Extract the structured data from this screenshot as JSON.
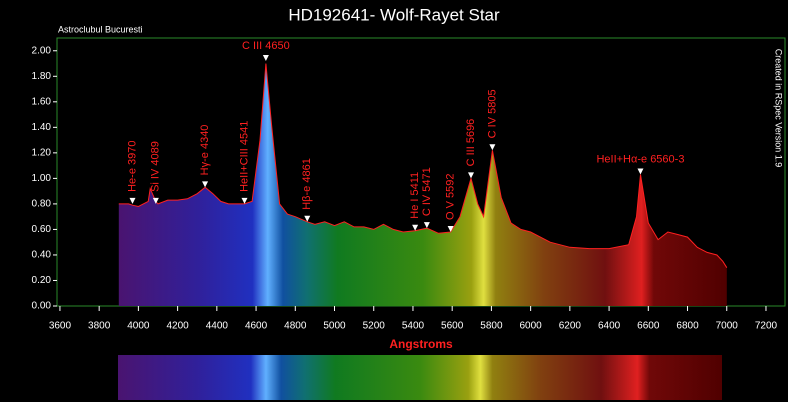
{
  "chart_data": {
    "type": "line",
    "title": "HD192641- Wolf-Rayet Star",
    "subtitle": "Astroclubul Bucuresti",
    "note": "Created in RSpec Version 1.9",
    "x_label": "Angstroms",
    "color": "#ff2020",
    "x": [
      3900,
      3950,
      3970,
      4000,
      4050,
      4060,
      4089,
      4100,
      4150,
      4200,
      4250,
      4300,
      4340,
      4380,
      4420,
      4460,
      4500,
      4541,
      4580,
      4620,
      4650,
      4680,
      4720,
      4760,
      4800,
      4861,
      4900,
      4950,
      5000,
      5050,
      5100,
      5150,
      5200,
      5250,
      5300,
      5350,
      5411,
      5471,
      5530,
      5592,
      5640,
      5696,
      5730,
      5760,
      5805,
      5850,
      5900,
      5950,
      6000,
      6100,
      6200,
      6300,
      6400,
      6500,
      6540,
      6560,
      6600,
      6650,
      6700,
      6750,
      6800,
      6850,
      6900,
      6950,
      6980,
      7000
    ],
    "values": [
      0.8,
      0.8,
      0.79,
      0.78,
      0.82,
      0.92,
      0.82,
      0.8,
      0.83,
      0.83,
      0.84,
      0.88,
      0.93,
      0.88,
      0.82,
      0.8,
      0.8,
      0.8,
      0.82,
      1.3,
      1.9,
      1.4,
      0.8,
      0.72,
      0.7,
      0.66,
      0.64,
      0.66,
      0.63,
      0.66,
      0.62,
      0.62,
      0.6,
      0.64,
      0.6,
      0.58,
      0.59,
      0.61,
      0.57,
      0.58,
      0.7,
      1.0,
      0.8,
      0.7,
      1.22,
      0.85,
      0.65,
      0.6,
      0.58,
      0.5,
      0.46,
      0.45,
      0.45,
      0.48,
      0.7,
      1.03,
      0.65,
      0.52,
      0.58,
      0.56,
      0.54,
      0.46,
      0.42,
      0.4,
      0.35,
      0.3
    ],
    "xlim": [
      3585,
      7297
    ],
    "ylim": [
      0,
      2.1
    ],
    "xticks": [
      3600,
      3800,
      4000,
      4200,
      4400,
      4600,
      4800,
      5000,
      5200,
      5400,
      5600,
      5800,
      6000,
      6200,
      6400,
      6600,
      6800,
      7000,
      7200
    ],
    "yticks": [
      {
        "value": 0,
        "label": "0.00"
      },
      {
        "value": 0.2,
        "label": "0.20"
      },
      {
        "value": 0.4,
        "label": "0.40"
      },
      {
        "value": 0.6,
        "label": "0.60"
      },
      {
        "value": 0.8,
        "label": "0.80"
      },
      {
        "value": 1.0,
        "label": "1.00"
      },
      {
        "value": 1.2,
        "label": "1.20"
      },
      {
        "value": 1.4,
        "label": "1.40"
      },
      {
        "value": 1.6,
        "label": "1.60"
      },
      {
        "value": 1.8,
        "label": "1.80"
      },
      {
        "value": 2.0,
        "label": "2.00"
      }
    ],
    "annotations": [
      {
        "text": "He-e 3970",
        "x": 3970,
        "y": 0.8,
        "orientation": "vertical"
      },
      {
        "text": "Si IV 4089",
        "x": 4089,
        "y": 0.8,
        "orientation": "vertical"
      },
      {
        "text": "Hγ-e 4340",
        "x": 4340,
        "y": 0.93,
        "orientation": "vertical"
      },
      {
        "text": "HeII+CIII 4541",
        "x": 4541,
        "y": 0.8,
        "orientation": "vertical"
      },
      {
        "text": "C III 4650",
        "x": 4650,
        "y": 1.92,
        "orientation": "horizontal"
      },
      {
        "text": "Hβ-e 4861",
        "x": 4861,
        "y": 0.66,
        "orientation": "vertical"
      },
      {
        "text": "He I 5411",
        "x": 5411,
        "y": 0.59,
        "orientation": "vertical"
      },
      {
        "text": "C IV 5471",
        "x": 5471,
        "y": 0.61,
        "orientation": "vertical"
      },
      {
        "text": "O V 5592",
        "x": 5592,
        "y": 0.58,
        "orientation": "vertical"
      },
      {
        "text": "C III 5696",
        "x": 5696,
        "y": 1.0,
        "orientation": "vertical"
      },
      {
        "text": "C IV 5805",
        "x": 5805,
        "y": 1.22,
        "orientation": "vertical"
      },
      {
        "text": "HeII+Hα-e 6560-3",
        "x": 6560,
        "y": 1.03,
        "orientation": "horizontal"
      }
    ]
  }
}
